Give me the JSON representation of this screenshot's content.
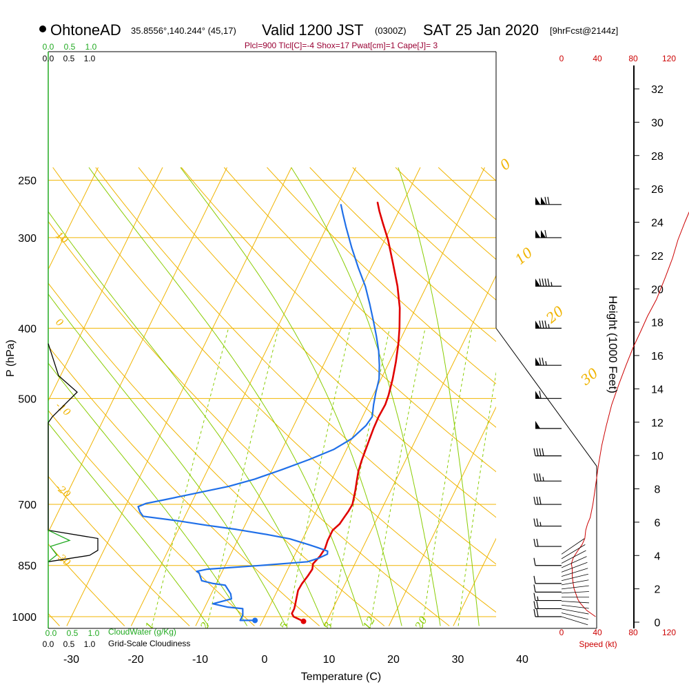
{
  "header": {
    "station": "OhtoneAD",
    "coords": "35.8556°,140.244° (45,17)",
    "valid": "Valid 1200 JST",
    "utc": "(0300Z)",
    "date": "SAT 25 Jan 2020",
    "forecast": "[9hrFcst@2144z]",
    "indices": "Plcl=900 Tlcl[C]=-4 Shox=17 Pwat[cm]=1 Cape[J]= 3"
  },
  "colors": {
    "temperature": "#e00000",
    "dewpoint": "#1f6fe8",
    "isotherm": "#f0b400",
    "dry_adiabat": "#f0b400",
    "moist_adiabat": "#88cc00",
    "mixing_ratio": "#88cc00",
    "cloud_water": "#22aa22",
    "cloudiness": "#000000",
    "wind_speed": "#cc0000",
    "indices_text": "#990033"
  },
  "chart_data": {
    "type": "skew-t",
    "xlabel": "Temperature (C)",
    "ylabel": "P (hPa)",
    "y2label": "Height (1000 Feet)",
    "x_ticks": [
      "-30",
      "-20",
      "-10",
      "0",
      "10",
      "20",
      "30",
      "40"
    ],
    "x_tick_values": [
      -30,
      -20,
      -10,
      0,
      10,
      20,
      30,
      40
    ],
    "p_ticks": [
      "250",
      "300",
      "400",
      "500",
      "700",
      "850",
      "1000"
    ],
    "p_tick_values": [
      250,
      300,
      400,
      500,
      700,
      850,
      1000
    ],
    "height_ticks": [
      "0",
      "2",
      "4",
      "6",
      "8",
      "10",
      "12",
      "14",
      "16",
      "18",
      "20",
      "22",
      "24",
      "26",
      "28",
      "30",
      "32"
    ],
    "height_tick_values": [
      0,
      2,
      4,
      6,
      8,
      10,
      12,
      14,
      16,
      18,
      20,
      22,
      24,
      26,
      28,
      30,
      32
    ],
    "series": [
      {
        "name": "Temperature",
        "points": [
          [
            6.4,
            1015
          ],
          [
            5.5,
            1008
          ],
          [
            4.5,
            1000
          ],
          [
            4.0,
            990
          ],
          [
            4.0,
            975
          ],
          [
            3.8,
            960
          ],
          [
            3.5,
            940
          ],
          [
            3.2,
            920
          ],
          [
            3.3,
            900
          ],
          [
            3.6,
            880
          ],
          [
            3.8,
            860
          ],
          [
            3.5,
            845
          ],
          [
            4.0,
            825
          ],
          [
            4.2,
            805
          ],
          [
            4.0,
            785
          ],
          [
            4.0,
            760
          ],
          [
            4.6,
            745
          ],
          [
            4.8,
            730
          ],
          [
            5.0,
            715
          ],
          [
            5.1,
            700
          ],
          [
            4.9,
            690
          ],
          [
            4.5,
            670
          ],
          [
            4.0,
            650
          ],
          [
            3.5,
            630
          ],
          [
            3.2,
            610
          ],
          [
            3.0,
            590
          ],
          [
            2.8,
            570
          ],
          [
            2.6,
            550
          ],
          [
            2.5,
            530
          ],
          [
            2.6,
            510
          ],
          [
            2.4,
            495
          ],
          [
            1.8,
            470
          ],
          [
            1.0,
            445
          ],
          [
            0.0,
            420
          ],
          [
            -1.0,
            400
          ],
          [
            -2.5,
            375
          ],
          [
            -4.5,
            350
          ],
          [
            -7.0,
            325
          ],
          [
            -9.5,
            302
          ],
          [
            -11.5,
            287
          ],
          [
            -13.0,
            276
          ],
          [
            -14.0,
            268
          ]
        ]
      },
      {
        "name": "Dewpoint",
        "points": [
          [
            -1.2,
            1012
          ],
          [
            -3.5,
            1012
          ],
          [
            -3.5,
            1005
          ],
          [
            -3.5,
            995
          ],
          [
            -4.0,
            975
          ],
          [
            -6.5,
            970
          ],
          [
            -9.0,
            960
          ],
          [
            -6.5,
            945
          ],
          [
            -7.0,
            930
          ],
          [
            -8.5,
            905
          ],
          [
            -10.5,
            900
          ],
          [
            -12.5,
            892
          ],
          [
            -13.5,
            870
          ],
          [
            -14.0,
            866
          ],
          [
            -12.5,
            860
          ],
          [
            -4.5,
            850
          ],
          [
            2.5,
            840
          ],
          [
            4.0,
            830
          ],
          [
            5.0,
            820
          ],
          [
            4.8,
            812
          ],
          [
            3.0,
            803
          ],
          [
            1.5,
            796
          ],
          [
            -2.0,
            781
          ],
          [
            -6.0,
            770
          ],
          [
            -11.0,
            758
          ],
          [
            -16.0,
            748
          ],
          [
            -21.0,
            737
          ],
          [
            -26.5,
            727
          ],
          [
            -27.3,
            717
          ],
          [
            -28.0,
            705
          ],
          [
            -27.0,
            698
          ],
          [
            -24.5,
            690
          ],
          [
            -20.5,
            677
          ],
          [
            -15.5,
            661
          ],
          [
            -12.0,
            646
          ],
          [
            -8.5,
            627
          ],
          [
            -5.0,
            607
          ],
          [
            -2.0,
            588
          ],
          [
            0.0,
            568
          ],
          [
            1.2,
            545
          ],
          [
            1.5,
            530
          ],
          [
            0.8,
            510
          ],
          [
            0.2,
            490
          ],
          [
            -0.3,
            470
          ],
          [
            -1.3,
            450
          ],
          [
            -2.5,
            430
          ],
          [
            -4.0,
            410
          ],
          [
            -5.5,
            392
          ],
          [
            -7.5,
            370
          ],
          [
            -9.5,
            350
          ],
          [
            -12.0,
            330
          ],
          [
            -14.5,
            310
          ],
          [
            -17.0,
            290
          ],
          [
            -18.5,
            278
          ],
          [
            -19.5,
            270
          ]
        ]
      }
    ],
    "surface_temperature": {
      "t": 6.4,
      "p": 1015
    },
    "surface_dewpoint": {
      "t": -1.2,
      "p": 1012
    },
    "wind_speed_axis": {
      "label": "Speed (kt)",
      "ticks": [
        "0",
        "40",
        "80",
        "120"
      ],
      "tick_values": [
        0,
        40,
        80,
        120
      ],
      "profile": [
        [
          38,
          1000
        ],
        [
          33,
          990
        ],
        [
          28,
          980
        ],
        [
          24,
          968
        ],
        [
          20,
          955
        ],
        [
          18,
          945
        ],
        [
          16,
          930
        ],
        [
          14,
          915
        ],
        [
          13,
          900
        ],
        [
          12,
          880
        ],
        [
          12,
          860
        ],
        [
          11,
          845
        ],
        [
          13,
          830
        ],
        [
          17,
          815
        ],
        [
          20,
          805
        ],
        [
          23,
          795
        ],
        [
          26,
          780
        ],
        [
          27,
          760
        ],
        [
          29,
          745
        ],
        [
          32,
          730
        ],
        [
          35,
          700
        ],
        [
          38,
          660
        ],
        [
          41,
          620
        ],
        [
          45,
          580
        ],
        [
          50,
          545
        ],
        [
          56,
          510
        ],
        [
          64,
          478
        ],
        [
          72,
          450
        ],
        [
          80,
          425
        ],
        [
          88,
          405
        ],
        [
          96,
          385
        ],
        [
          106,
          365
        ],
        [
          116,
          340
        ],
        [
          124,
          320
        ],
        [
          130,
          302
        ],
        [
          138,
          285
        ],
        [
          146,
          270
        ]
      ]
    },
    "wind_barbs": [
      {
        "p": 1000,
        "spd": 20
      },
      {
        "p": 975,
        "spd": 20
      },
      {
        "p": 950,
        "spd": 15
      },
      {
        "p": 925,
        "spd": 10
      },
      {
        "p": 900,
        "spd": 10
      },
      {
        "p": 850,
        "spd": 10
      },
      {
        "p": 800,
        "spd": 20
      },
      {
        "p": 750,
        "spd": 25
      },
      {
        "p": 700,
        "spd": 30
      },
      {
        "p": 650,
        "spd": 35
      },
      {
        "p": 600,
        "spd": 40
      },
      {
        "p": 550,
        "spd": 50
      },
      {
        "p": 500,
        "spd": 60
      },
      {
        "p": 450,
        "spd": 75
      },
      {
        "p": 400,
        "spd": 85
      },
      {
        "p": 350,
        "spd": 95
      },
      {
        "p": 300,
        "spd": 110
      },
      {
        "p": 270,
        "spd": 120
      }
    ],
    "cloud_water_axis": {
      "label": "CloudWater (g/Kg)",
      "ticks": [
        "0.0",
        "0.5",
        "1.0"
      ]
    },
    "cloudiness_axis": {
      "label": "Grid-Scale Cloudiness",
      "ticks": [
        "0.0",
        "0.5",
        "1.0"
      ]
    },
    "cloud_water_profile": [
      [
        0,
        760
      ],
      [
        0.5,
        785
      ],
      [
        0.05,
        800
      ],
      [
        0.2,
        822
      ],
      [
        0,
        840
      ]
    ],
    "cloudiness_profile": [
      [
        0,
        420
      ],
      [
        0.25,
        465
      ],
      [
        0.7,
        490
      ],
      [
        0.1,
        530
      ],
      [
        0,
        540
      ],
      [
        0,
        760
      ],
      [
        1.2,
        780
      ],
      [
        1.2,
        810
      ],
      [
        1.0,
        823
      ],
      [
        0,
        840
      ]
    ],
    "isotherm_labels": [
      "0",
      "10",
      "20",
      "30"
    ],
    "dry_adiabat_labels": [
      "10",
      "0",
      "-10",
      "-20",
      "-30"
    ],
    "mixing_ratio_labels": [
      "1",
      "2",
      "5",
      "8",
      "12",
      "20"
    ]
  }
}
